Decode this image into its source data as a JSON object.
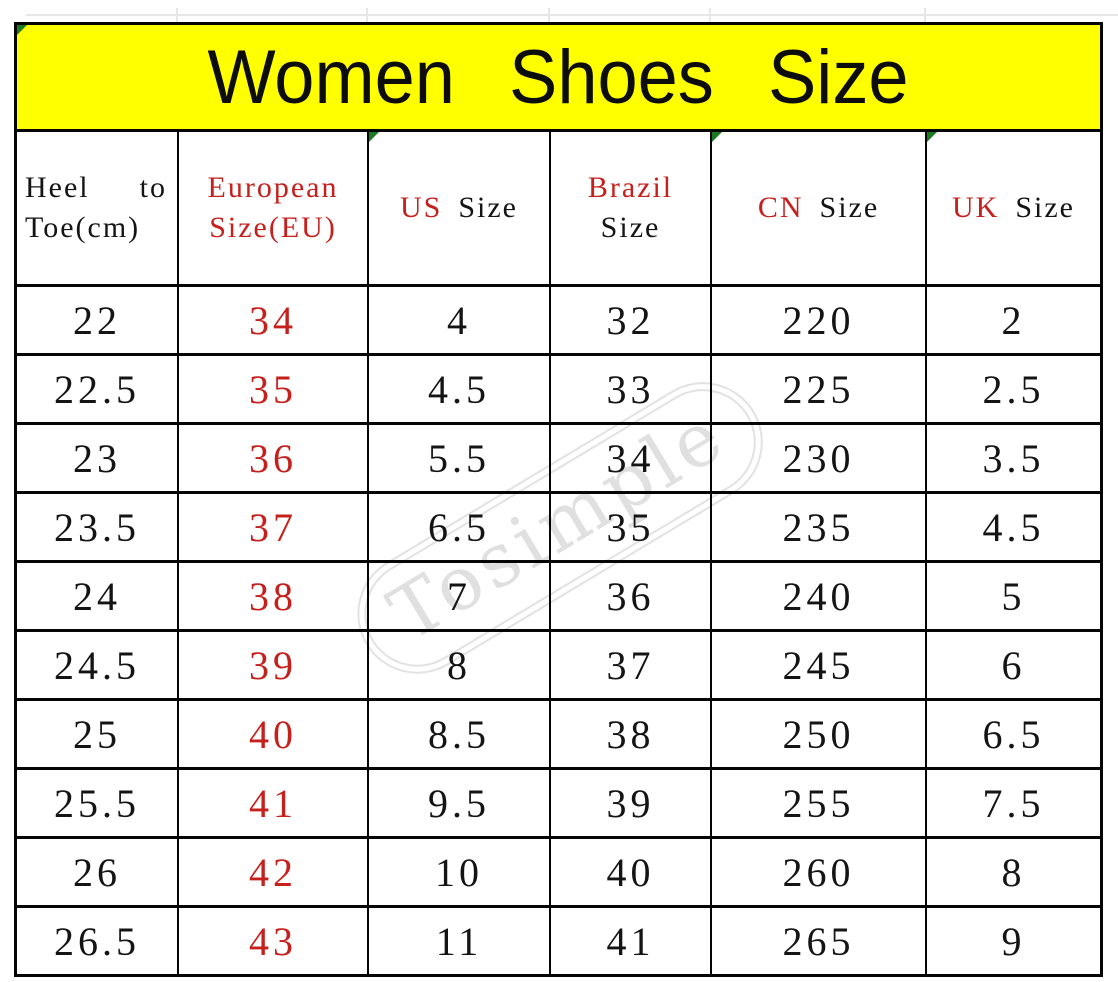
{
  "banner": {
    "title": "Women Shoes Size"
  },
  "watermark": {
    "text": "Tosimple"
  },
  "colors": {
    "banner_background": "#ffff00",
    "accent_red": "#c6201d",
    "flag_green": "#1e7a22",
    "border_black": "#050505",
    "watermark_gray": "#e0e0e0"
  },
  "header": {
    "col1": {
      "word1": "Heel",
      "word2": "to",
      "line2": "Toe(cm)"
    },
    "col2": {
      "line1": "European",
      "line2": "Size(EU)"
    },
    "col3": {
      "prefix": "US",
      "label": "Size"
    },
    "col4": {
      "prefix": "Brazil",
      "label": "Size"
    },
    "col5": {
      "prefix": "CN",
      "label": "Size"
    },
    "col6": {
      "prefix": "UK",
      "label": "Size"
    }
  },
  "chart_data": {
    "type": "table",
    "title": "Women Shoes Size",
    "columns": [
      "Heel to Toe(cm)",
      "European Size(EU)",
      "US Size",
      "Brazil Size",
      "CN Size",
      "UK Size"
    ],
    "rows": [
      [
        "22",
        "34",
        "4",
        "32",
        "220",
        "2"
      ],
      [
        "22.5",
        "35",
        "4.5",
        "33",
        "225",
        "2.5"
      ],
      [
        "23",
        "36",
        "5.5",
        "34",
        "230",
        "3.5"
      ],
      [
        "23.5",
        "37",
        "6.5",
        "35",
        "235",
        "4.5"
      ],
      [
        "24",
        "38",
        "7",
        "36",
        "240",
        "5"
      ],
      [
        "24.5",
        "39",
        "8",
        "37",
        "245",
        "6"
      ],
      [
        "25",
        "40",
        "8.5",
        "38",
        "250",
        "6.5"
      ],
      [
        "25.5",
        "41",
        "9.5",
        "39",
        "255",
        "7.5"
      ],
      [
        "26",
        "42",
        "10",
        "40",
        "260",
        "8"
      ],
      [
        "26.5",
        "43",
        "11",
        "41",
        "265",
        "9"
      ]
    ],
    "column_keys": [
      "heel-to-toe-cm",
      "eu-size",
      "us-size",
      "brazil-size",
      "cn-size",
      "uk-size"
    ]
  }
}
